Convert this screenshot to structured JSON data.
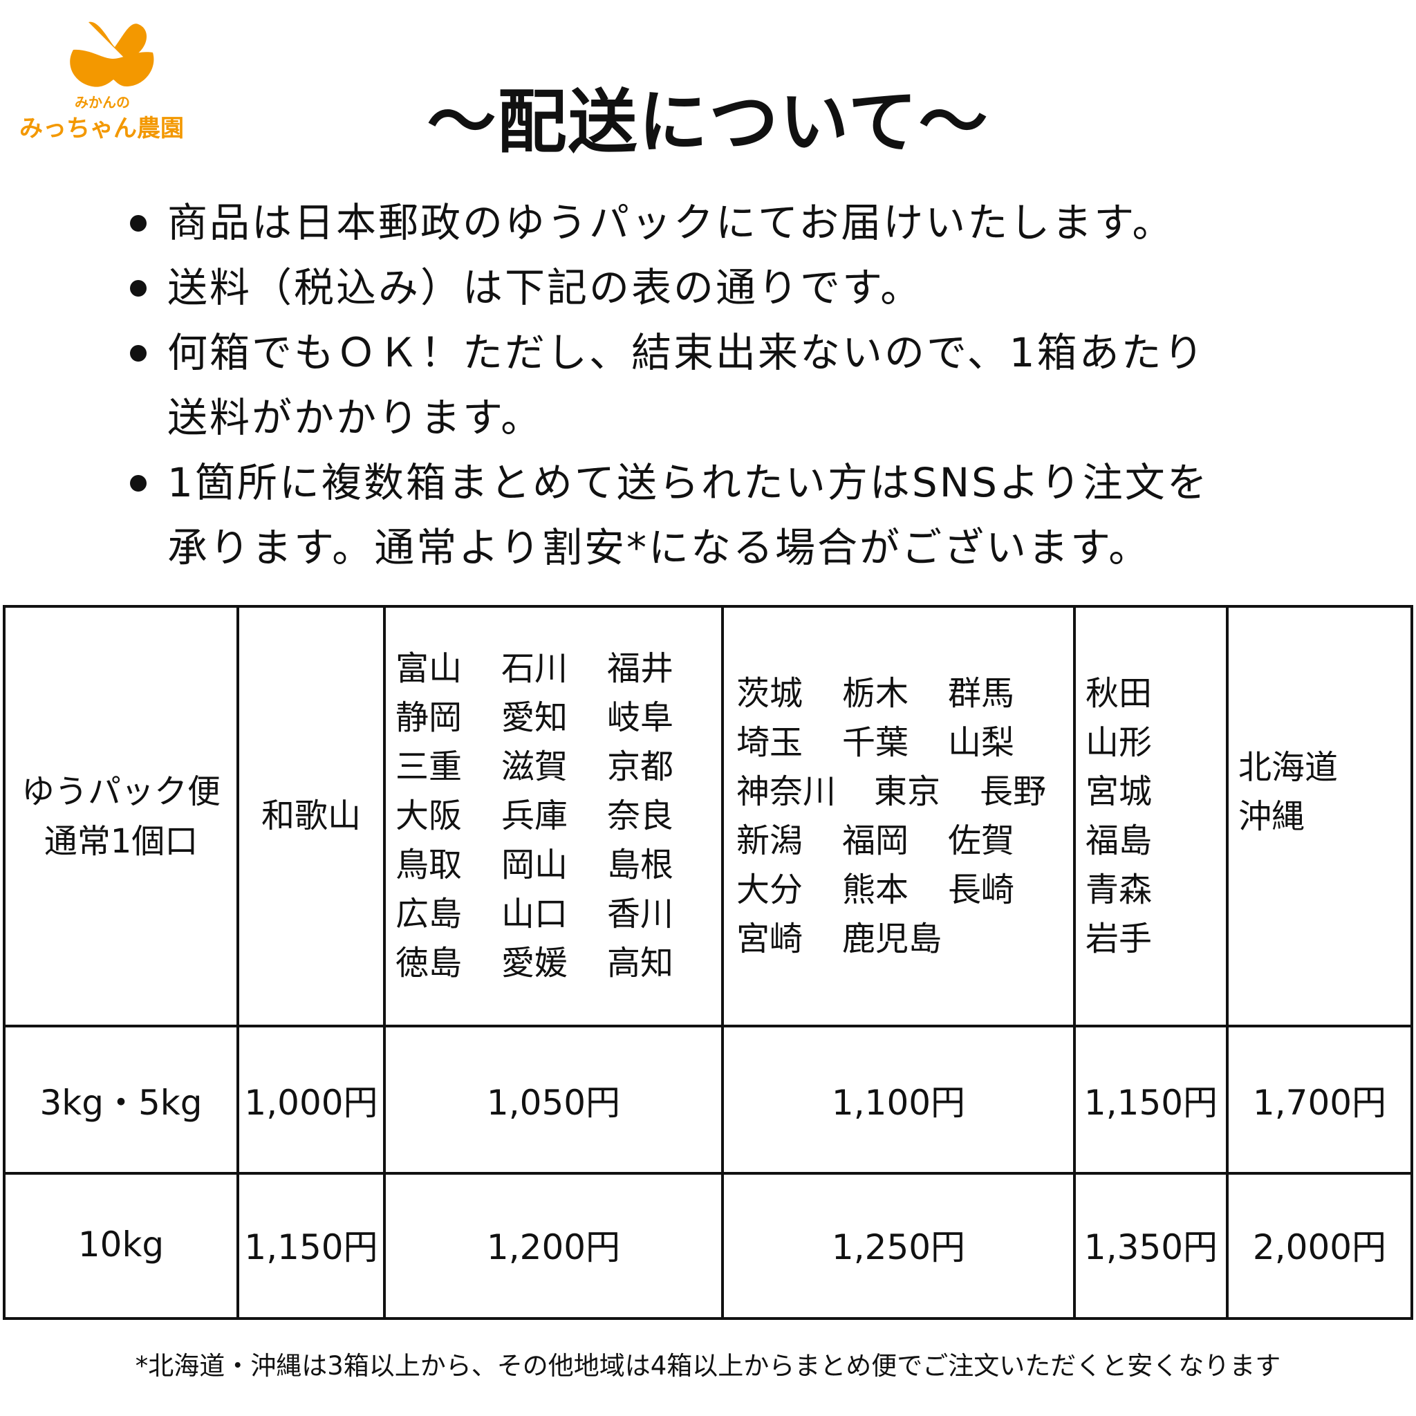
{
  "logo": {
    "small_text": "みかんの",
    "main_text": "みっちゃん農園",
    "color": "#F39800"
  },
  "title": "〜配送について〜",
  "bullets": [
    {
      "lines": [
        "商品は日本郵政のゆうパックにてお届けいたします。"
      ]
    },
    {
      "lines": [
        "送料（税込み）は下記の表の通りです。"
      ]
    },
    {
      "lines": [
        "何箱でもＯＫ！ただし、結束出来ないので、1箱あたり",
        "送料がかかります。"
      ]
    },
    {
      "lines": [
        "1箇所に複数箱まとめて送られたい方はSNSより注文を",
        "承ります。通常より割安*になる場合がございます。"
      ]
    }
  ],
  "table": {
    "header_label": [
      "ゆうパック便",
      "通常1個口"
    ],
    "regions": [
      {
        "lines": [
          [
            "和歌山"
          ]
        ]
      },
      {
        "lines": [
          [
            "富山",
            "石川",
            "福井"
          ],
          [
            "静岡",
            "愛知",
            "岐阜"
          ],
          [
            "三重",
            "滋賀",
            "京都"
          ],
          [
            "大阪",
            "兵庫",
            "奈良"
          ],
          [
            "鳥取",
            "岡山",
            "島根"
          ],
          [
            "広島",
            "山口",
            "香川"
          ],
          [
            "徳島",
            "愛媛",
            "高知"
          ]
        ]
      },
      {
        "lines": [
          [
            "茨城",
            "栃木",
            "群馬"
          ],
          [
            "埼玉",
            "千葉",
            "山梨"
          ],
          [
            "神奈川",
            "東京",
            "長野"
          ],
          [
            "新潟",
            "福岡",
            "佐賀"
          ],
          [
            "大分",
            "熊本",
            "長崎"
          ],
          [
            "宮崎",
            "鹿児島"
          ]
        ]
      },
      {
        "lines": [
          [
            "秋田"
          ],
          [
            "山形"
          ],
          [
            "宮城"
          ],
          [
            "福島"
          ],
          [
            "青森"
          ],
          [
            "岩手"
          ]
        ]
      },
      {
        "lines": [
          [
            "北海道"
          ],
          [
            "沖縄"
          ]
        ]
      }
    ],
    "rows": [
      {
        "label": "3kg・5kg",
        "prices": [
          "1,000円",
          "1,050円",
          "1,100円",
          "1,150円",
          "1,700円"
        ]
      },
      {
        "label": "10kg",
        "prices": [
          "1,150円",
          "1,200円",
          "1,250円",
          "1,350円",
          "2,000円"
        ]
      }
    ]
  },
  "footnote": "*北海道・沖縄は3箱以上から、その他地域は4箱以上からまとめ便でご注文いただくと安くなります"
}
